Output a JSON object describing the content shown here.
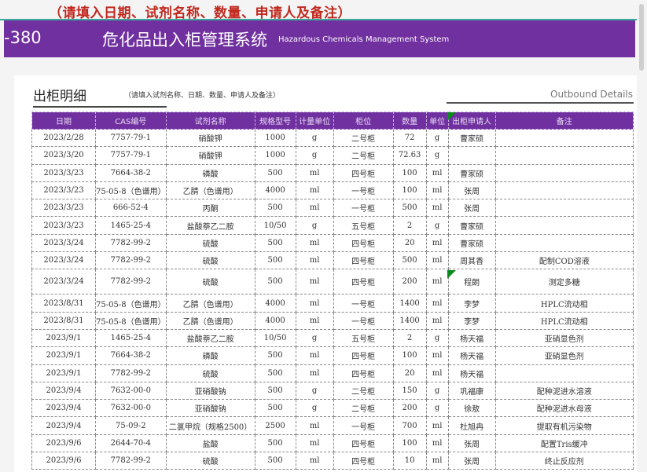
{
  "note": "（请填入日期、试剂名称、数量、申请人及备注）",
  "banner": {
    "code": "-380",
    "title": "危化品出入柜管理系统",
    "subtitle": "Hazardous Chemicals Management System"
  },
  "section": {
    "title": "出柜明细",
    "hint": "（请填入试剂名称、日期、数量、申请人及备注）",
    "title_en": "Outbound Details"
  },
  "colors": {
    "banner": "#7030a0",
    "note": "#c0281e"
  },
  "table": {
    "headers": [
      "日期",
      "CAS编号",
      "试剂名称",
      "规格型号",
      "计量单位",
      "柜位",
      "数量",
      "单位",
      "出柜申请人",
      "备注"
    ],
    "rows": [
      [
        "2023/2/28",
        "7757-79-1",
        "硝酸钾",
        "1000",
        "g",
        "二号柜",
        "72",
        "g",
        "曹家硕",
        ""
      ],
      [
        "2023/3/20",
        "7757-79-1",
        "硝酸钾",
        "1000",
        "g",
        "二号柜",
        "72.63",
        "g",
        "",
        ""
      ],
      [
        "2023/3/23",
        "7664-38-2",
        "磷酸",
        "500",
        "ml",
        "四号柜",
        "100",
        "ml",
        "曹家硕",
        ""
      ],
      [
        "2023/3/23",
        "75-05-8（色谱用）",
        "乙腈（色谱用）",
        "4000",
        "ml",
        "一号柜",
        "100",
        "ml",
        "张周",
        ""
      ],
      [
        "2023/3/23",
        "666-52-4",
        "丙酮",
        "500",
        "ml",
        "一号柜",
        "500",
        "ml",
        "张周",
        ""
      ],
      [
        "2023/3/23",
        "1465-25-4",
        "盐酸萘乙二胺",
        "10/50",
        "g",
        "五号柜",
        "2",
        "g",
        "曹家硕",
        ""
      ],
      [
        "2023/3/24",
        "7782-99-2",
        "硫酸",
        "500",
        "ml",
        "四号柜",
        "20",
        "ml",
        "曹家硕",
        ""
      ],
      [
        "2023/3/24",
        "7782-99-2",
        "硫酸",
        "500",
        "ml",
        "四号柜",
        "500",
        "ml",
        "周其香",
        "配制COD溶液"
      ],
      [
        "2023/3/24",
        "7782-99-2",
        "硫酸",
        "500",
        "ml",
        "四号柜",
        "200",
        "ml",
        "程朗",
        "测定多糖"
      ],
      [
        "2023/8/31",
        "75-05-8（色谱用）",
        "乙腈（色谱用）",
        "4000",
        "ml",
        "一号柜",
        "1400",
        "ml",
        "李梦",
        "HPLC流动相"
      ],
      [
        "2023/8/31",
        "75-05-8（色谱用）",
        "乙腈（色谱用）",
        "4000",
        "ml",
        "一号柜",
        "1400",
        "ml",
        "李梦",
        "HPLC流动相"
      ],
      [
        "2023/9/1",
        "1465-25-4",
        "盐酸萘乙二胺",
        "10/50",
        "g",
        "五号柜",
        "2",
        "g",
        "杨天福",
        "亚硝显色剂"
      ],
      [
        "2023/9/1",
        "7664-38-2",
        "磷酸",
        "500",
        "ml",
        "四号柜",
        "100",
        "ml",
        "杨天福",
        "亚硝显色剂"
      ],
      [
        "2023/9/1",
        "7782-99-2",
        "硫酸",
        "500",
        "ml",
        "四号柜",
        "20",
        "ml",
        "杨天福",
        ""
      ],
      [
        "2023/9/4",
        "7632-00-0",
        "亚硝酸钠",
        "500",
        "g",
        "二号柜",
        "150",
        "g",
        "巩福康",
        "配种泥进水溶液"
      ],
      [
        "2023/9/4",
        "7632-00-0",
        "亚硝酸钠",
        "500",
        "g",
        "二号柜",
        "200",
        "g",
        "徐敖",
        "配种泥进水母液"
      ],
      [
        "2023/9/4",
        "75-09-2",
        "二氯甲烷（规格2500）",
        "2500",
        "ml",
        "一号柜",
        "700",
        "ml",
        "杜旭冉",
        "提取有机污染物"
      ],
      [
        "2023/9/6",
        "2644-70-4",
        "盐酸",
        "500",
        "ml",
        "四号柜",
        "100",
        "ml",
        "张周",
        "配置Tris缓冲"
      ],
      [
        "2023/9/6",
        "7782-99-2",
        "硫酸",
        "500",
        "ml",
        "四号柜",
        "10",
        "ml",
        "张周",
        "终止反应剂"
      ]
    ]
  }
}
